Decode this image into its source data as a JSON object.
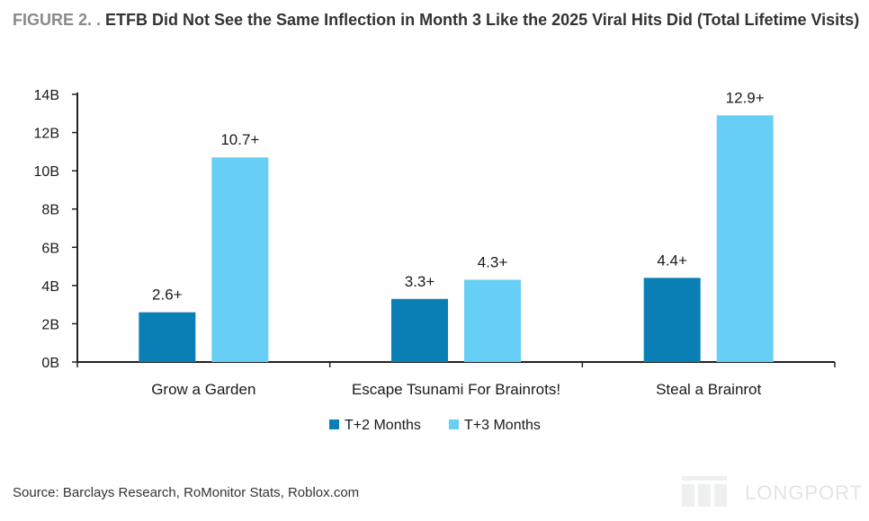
{
  "figure_label": "FIGURE 2. .",
  "source": "Source: Barclays Research, RoMonitor Stats, Roblox.com",
  "watermark": "LONGPORT",
  "colors": {
    "t2": "#0a7fb5",
    "t3": "#67cff5",
    "axis": "#222222"
  },
  "chart_data": {
    "type": "bar",
    "title": "ETFB Did Not See the Same Inflection in Month 3 Like the 2025 Viral Hits Did (Total Lifetime Visits)",
    "categories": [
      "Grow a Garden",
      "Escape Tsunami For Brainrots!",
      "Steal a Brainrot"
    ],
    "series": [
      {
        "name": "T+2 Months",
        "values": [
          2.6,
          3.3,
          4.4
        ],
        "labels": [
          "2.6+",
          "3.3+",
          "4.4+"
        ]
      },
      {
        "name": "T+3 Months",
        "values": [
          10.7,
          4.3,
          12.9
        ],
        "labels": [
          "10.7+",
          "4.3+",
          "12.9+"
        ]
      }
    ],
    "yticks": [
      "0B",
      "2B",
      "4B",
      "6B",
      "8B",
      "10B",
      "12B",
      "14B"
    ],
    "ylim": [
      0,
      14
    ],
    "xlabel": "",
    "ylabel": "",
    "grid": false,
    "legend": "bottom-center"
  }
}
